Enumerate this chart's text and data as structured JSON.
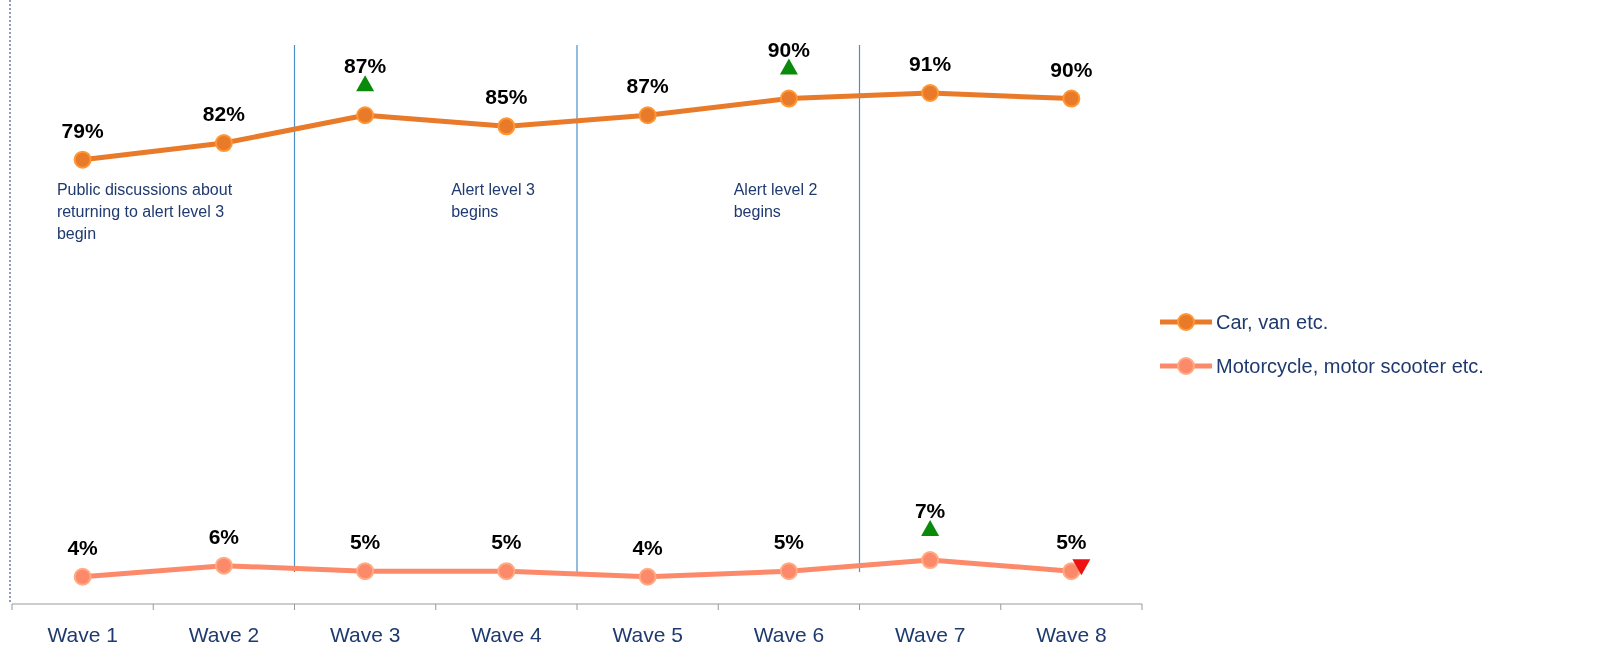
{
  "chart_data": {
    "type": "line",
    "categories": [
      "Wave 1",
      "Wave 2",
      "Wave 3",
      "Wave 4",
      "Wave 5",
      "Wave 6",
      "Wave 7",
      "Wave 8"
    ],
    "series": [
      {
        "name": "Car, van etc.",
        "color": "#e87a2a",
        "values": [
          79,
          82,
          87,
          85,
          87,
          90,
          91,
          90
        ],
        "value_labels": [
          "79%",
          "82%",
          "87%",
          "85%",
          "87%",
          "90%",
          "91%",
          "90%"
        ]
      },
      {
        "name": "Motorcycle, motor scooter etc.",
        "color": "#fc8a6a",
        "values": [
          4,
          6,
          5,
          5,
          4,
          5,
          7,
          5
        ],
        "value_labels": [
          "4%",
          "6%",
          "5%",
          "5%",
          "4%",
          "5%",
          "7%",
          "5%"
        ]
      }
    ],
    "marker": "circle",
    "legend": "right",
    "annotations": [
      "Public discussions about returning to alert level 3 begin",
      "Alert level 3 begins",
      "Alert level 2 begins"
    ]
  }
}
